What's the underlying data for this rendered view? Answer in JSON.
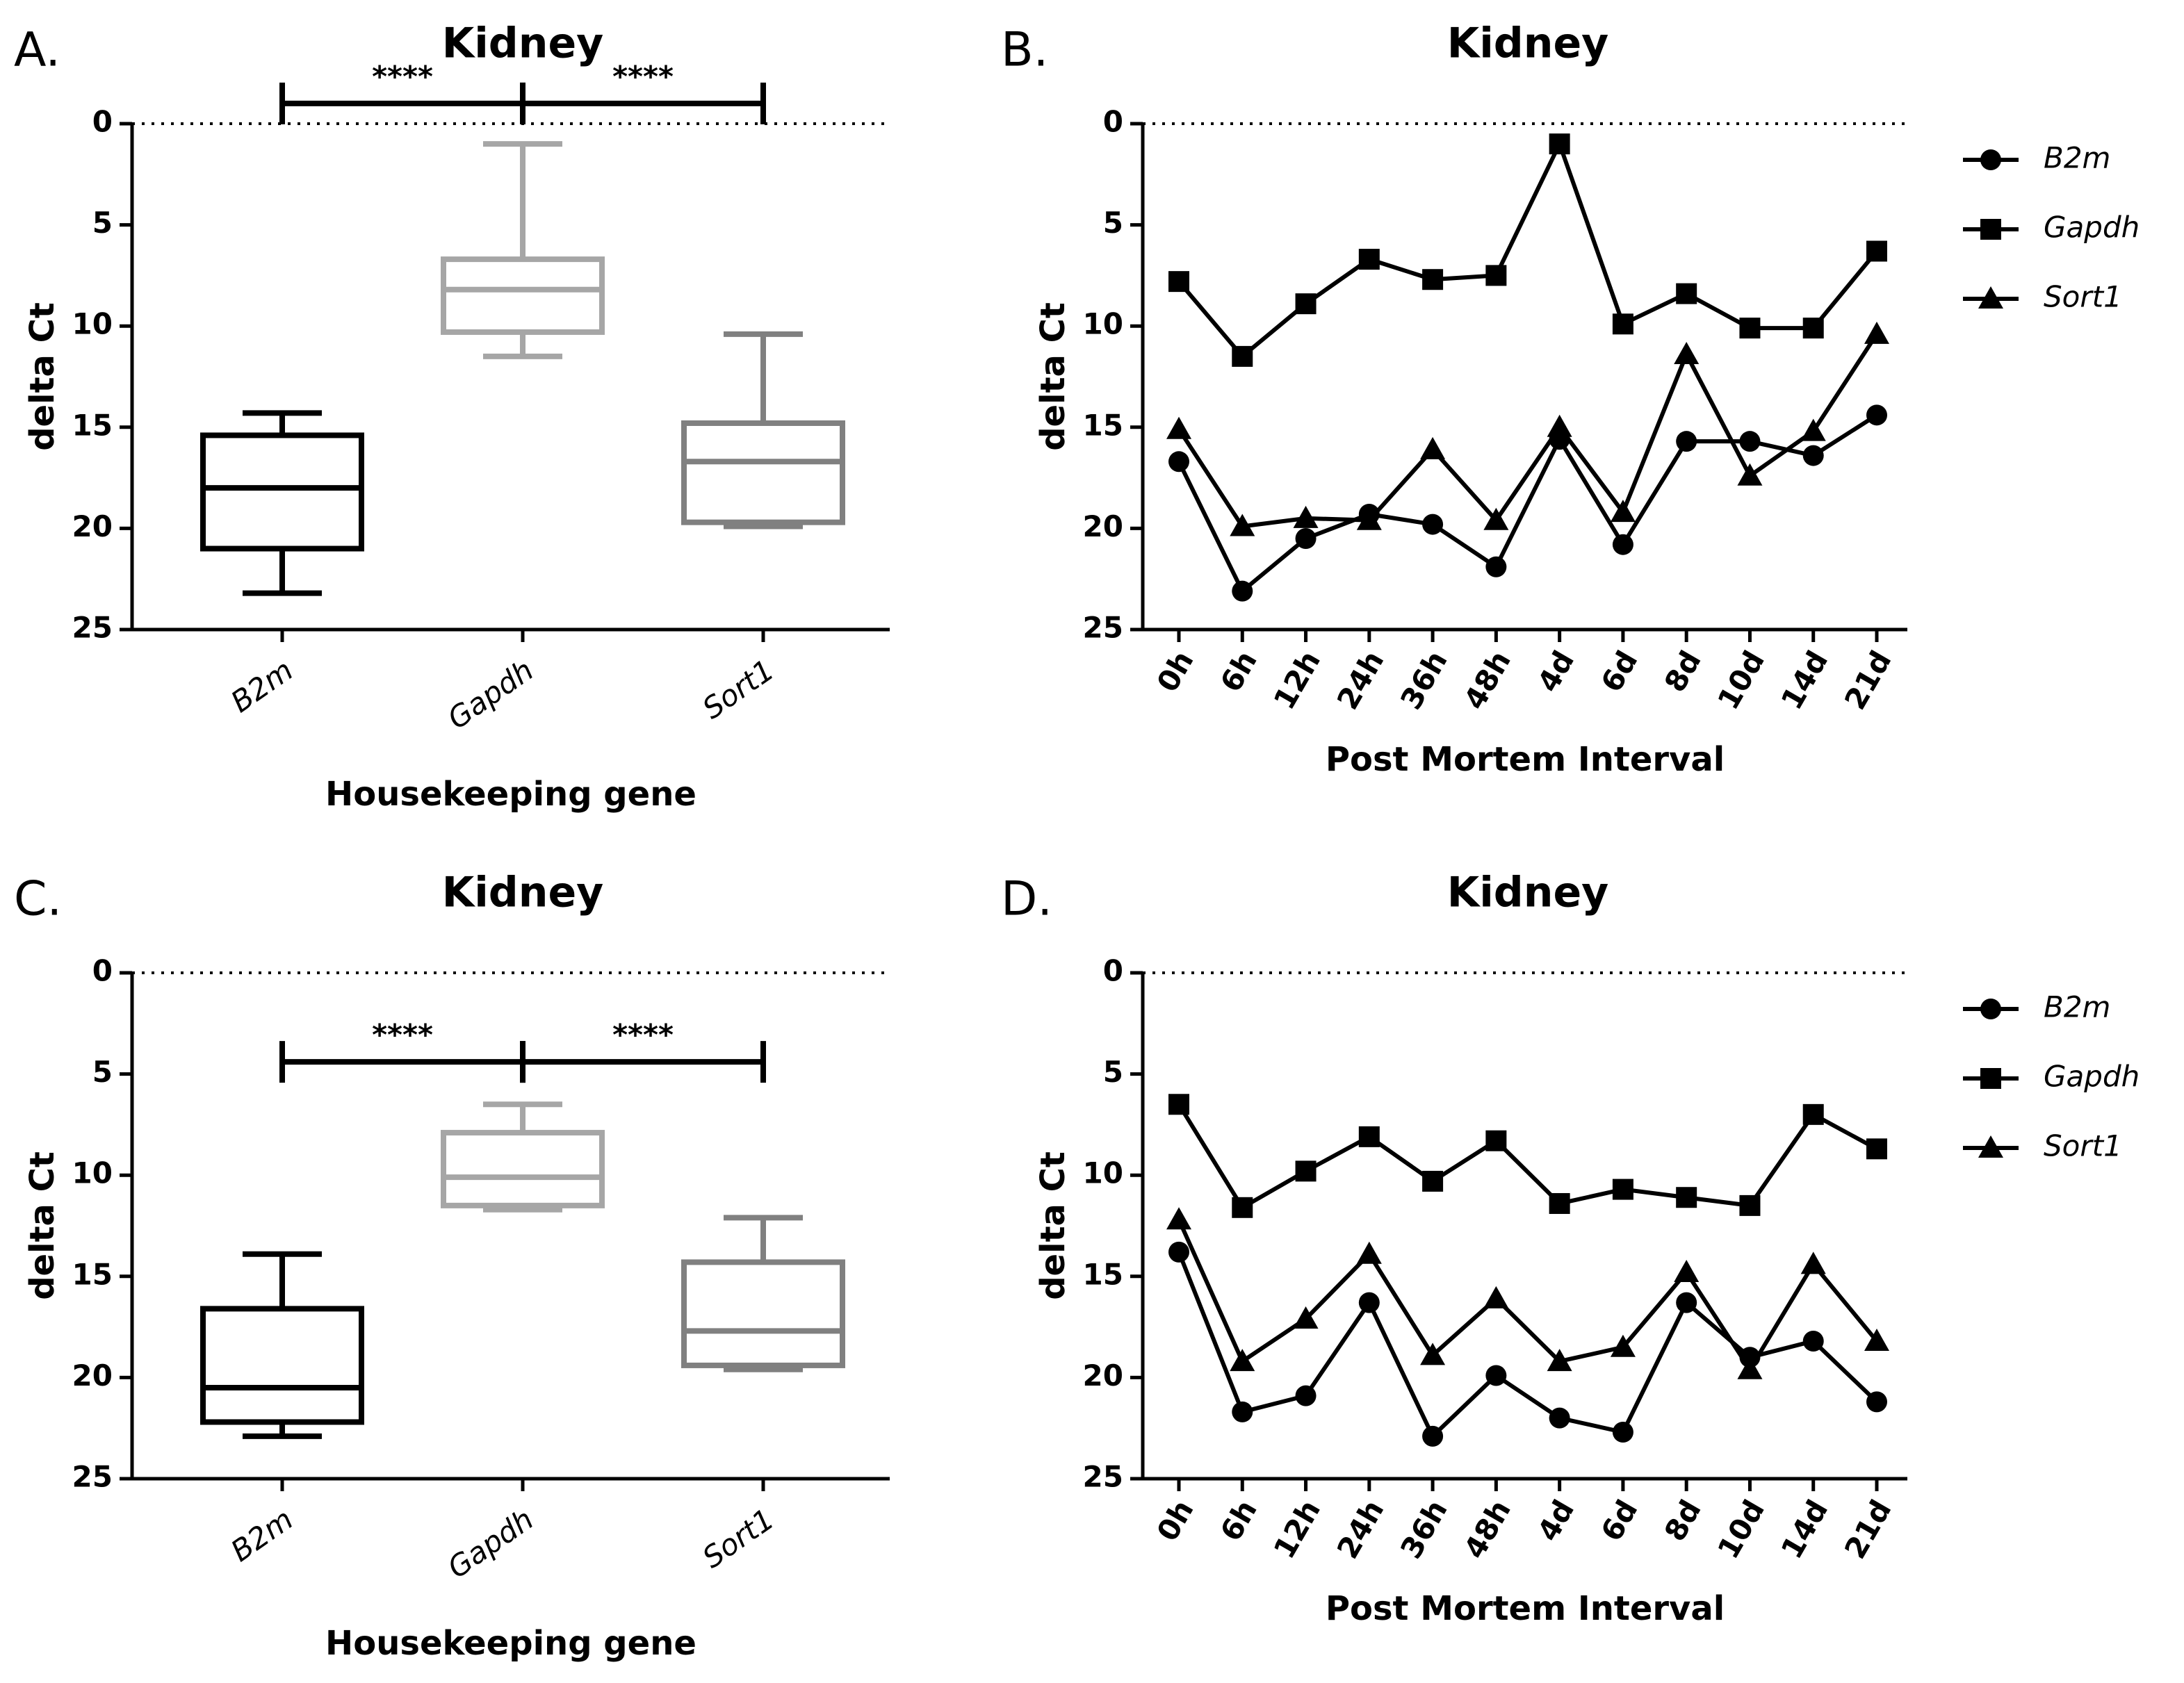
{
  "chart_data": [
    {
      "type": "box",
      "panel_label": "A.",
      "title": "Kidney",
      "x_label": "Housekeeping gene",
      "y_label": "delta Ct",
      "categories": [
        "B2m",
        "Gapdh",
        "Sort1"
      ],
      "boxes": [
        {
          "min": 14.3,
          "q1": 15.4,
          "median": 18,
          "q3": 21,
          "max": 23.2,
          "color": "#000000"
        },
        {
          "min": 1,
          "q1": 6.7,
          "median": 8.2,
          "q3": 10.3,
          "max": 11.5,
          "color": "#a6a6a6"
        },
        {
          "min": 10.4,
          "q1": 14.8,
          "median": 16.7,
          "q3": 19.7,
          "max": 19.9,
          "color": "#808080"
        }
      ],
      "ylim": [
        0,
        25
      ],
      "yticks": [
        0,
        5,
        10,
        15,
        20,
        25
      ],
      "y_inverted": true,
      "zero_line": "dotted",
      "annotations": [
        {
          "text": "****",
          "from": "B2m",
          "to": "Gapdh"
        },
        {
          "text": "****",
          "from": "Gapdh",
          "to": "Sort1"
        }
      ]
    },
    {
      "type": "line",
      "panel_label": "B.",
      "title": "Kidney",
      "x_label": "Post Mortem Interval",
      "y_label": "delta Ct",
      "categories": [
        "0h",
        "6h",
        "12h",
        "24h",
        "36h",
        "48h",
        "4d",
        "6d",
        "8d",
        "10d",
        "14d",
        "21d"
      ],
      "series": [
        {
          "name": "B2m",
          "color": "#000000",
          "marker": "circle",
          "values": [
            16.7,
            23.1,
            20.5,
            19.3,
            19.8,
            21.9,
            15.6,
            20.8,
            15.7,
            15.7,
            16.4,
            14.4
          ]
        },
        {
          "name": "Gapdh",
          "color": "#000000",
          "marker": "square",
          "values": [
            7.8,
            11.5,
            8.9,
            6.7,
            7.7,
            7.5,
            1.0,
            9.9,
            8.4,
            10.1,
            10.1,
            6.3
          ]
        },
        {
          "name": "Sort1",
          "color": "#000000",
          "marker": "triangle",
          "values": [
            15.1,
            19.9,
            19.5,
            19.6,
            16.1,
            19.6,
            15.0,
            19.2,
            11.4,
            17.4,
            15.2,
            10.4
          ]
        }
      ],
      "ylim": [
        0,
        25
      ],
      "yticks": [
        0,
        5,
        10,
        15,
        20,
        25
      ],
      "y_inverted": true,
      "zero_line": "dotted",
      "legend": "right"
    },
    {
      "type": "box",
      "panel_label": "C.",
      "title": "Kidney",
      "x_label": "Housekeeping gene",
      "y_label": "delta Ct",
      "categories": [
        "B2m",
        "Gapdh",
        "Sort1"
      ],
      "boxes": [
        {
          "min": 13.9,
          "q1": 16.6,
          "median": 20.5,
          "q3": 22.2,
          "max": 22.9,
          "color": "#000000"
        },
        {
          "min": 6.5,
          "q1": 7.9,
          "median": 10.1,
          "q3": 11.5,
          "max": 11.7,
          "color": "#a6a6a6"
        },
        {
          "min": 12.1,
          "q1": 14.3,
          "median": 17.7,
          "q3": 19.4,
          "max": 19.6,
          "color": "#808080"
        }
      ],
      "ylim": [
        0,
        25
      ],
      "yticks": [
        0,
        5,
        10,
        15,
        20,
        25
      ],
      "y_inverted": true,
      "zero_line": "dotted",
      "annotations": [
        {
          "text": "****",
          "from": "B2m",
          "to": "Gapdh"
        },
        {
          "text": "****",
          "from": "Gapdh",
          "to": "Sort1"
        }
      ]
    },
    {
      "type": "line",
      "panel_label": "D.",
      "title": "Kidney",
      "x_label": "Post Mortem Interval",
      "y_label": "delta Ct",
      "categories": [
        "0h",
        "6h",
        "12h",
        "24h",
        "36h",
        "48h",
        "4d",
        "6d",
        "8d",
        "10d",
        "14d",
        "21d"
      ],
      "series": [
        {
          "name": "B2m",
          "color": "#000000",
          "marker": "circle",
          "values": [
            13.8,
            21.7,
            20.9,
            16.3,
            22.9,
            19.9,
            22.0,
            22.7,
            16.3,
            19.0,
            18.2,
            21.2
          ]
        },
        {
          "name": "Gapdh",
          "color": "#000000",
          "marker": "square",
          "values": [
            6.5,
            11.6,
            9.8,
            8.1,
            10.3,
            8.3,
            11.4,
            10.7,
            11.1,
            11.5,
            7.0,
            8.7
          ]
        },
        {
          "name": "Sort1",
          "color": "#000000",
          "marker": "triangle",
          "values": [
            12.2,
            19.2,
            17.1,
            13.9,
            18.9,
            16.1,
            19.2,
            18.5,
            14.8,
            19.6,
            14.4,
            18.2
          ]
        }
      ],
      "ylim": [
        0,
        25
      ],
      "yticks": [
        0,
        5,
        10,
        15,
        20,
        25
      ],
      "y_inverted": true,
      "zero_line": "dotted",
      "legend": "right"
    }
  ]
}
